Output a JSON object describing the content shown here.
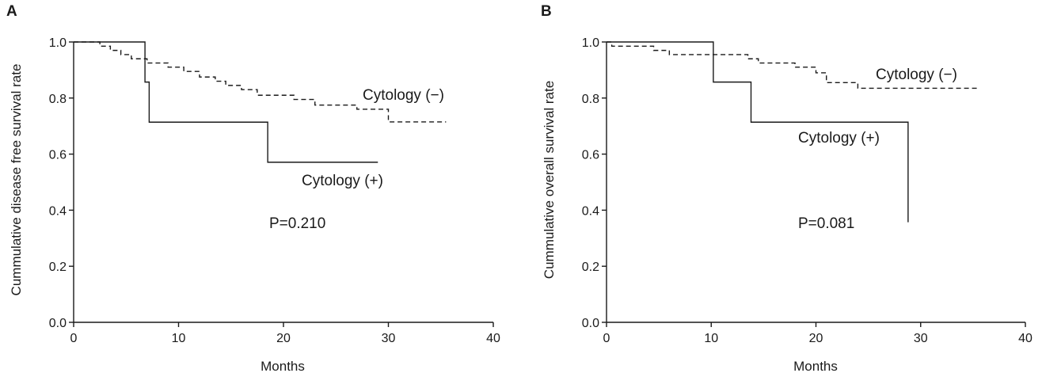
{
  "chart_data": [
    {
      "type": "line",
      "panel": "A",
      "title": "",
      "xlabel": "Months",
      "ylabel": "Cummulative disease free survival rate",
      "xlim": [
        0,
        40
      ],
      "ylim": [
        0,
        1.0
      ],
      "xticks": [
        0,
        10,
        20,
        30,
        40
      ],
      "yticks": [
        0.0,
        0.2,
        0.4,
        0.6,
        0.8,
        1.0
      ],
      "ytick_labels": [
        "0.0",
        "0.2",
        "0.4",
        "0.6",
        "0.8",
        "1.0"
      ],
      "grid": false,
      "annotation": "P=0.210",
      "series": [
        {
          "name": "Cytology (−)",
          "style": "dashed",
          "step": true,
          "x": [
            0,
            2.5,
            3.5,
            4.5,
            5.5,
            7,
            9,
            10.5,
            12,
            13.5,
            14.5,
            16,
            17.5,
            21,
            23,
            27,
            30,
            35.5
          ],
          "y": [
            1.0,
            0.985,
            0.97,
            0.955,
            0.94,
            0.925,
            0.91,
            0.895,
            0.875,
            0.86,
            0.845,
            0.83,
            0.81,
            0.795,
            0.775,
            0.76,
            0.715,
            0.715
          ]
        },
        {
          "name": "Cytology (+)",
          "style": "solid",
          "step": true,
          "x": [
            0,
            6.8,
            7.2,
            18.5,
            29
          ],
          "y": [
            1.0,
            0.857,
            0.714,
            0.571,
            0.571
          ]
        }
      ]
    },
    {
      "type": "line",
      "panel": "B",
      "title": "",
      "xlabel": "Months",
      "ylabel": "Cummulative overall survival rate",
      "xlim": [
        0,
        40
      ],
      "ylim": [
        0,
        1.0
      ],
      "xticks": [
        0,
        10,
        20,
        30,
        40
      ],
      "yticks": [
        0.0,
        0.2,
        0.4,
        0.6,
        0.8,
        1.0
      ],
      "ytick_labels": [
        "0.0",
        "0.2",
        "0.4",
        "0.6",
        "0.8",
        "1.0"
      ],
      "grid": false,
      "annotation": "P=0.081",
      "series": [
        {
          "name": "Cytology (−)",
          "style": "dashed",
          "step": true,
          "x": [
            0,
            0.5,
            4.5,
            6,
            13.5,
            14.5,
            18,
            20,
            21,
            24,
            35.5
          ],
          "y": [
            1.0,
            0.985,
            0.97,
            0.955,
            0.94,
            0.925,
            0.91,
            0.89,
            0.855,
            0.835,
            0.835
          ]
        },
        {
          "name": "Cytology (+)",
          "style": "solid",
          "step": true,
          "x": [
            0,
            10.2,
            13.8,
            28.8,
            28.8
          ],
          "y": [
            1.0,
            0.857,
            0.714,
            0.714,
            0.357
          ]
        }
      ]
    }
  ]
}
